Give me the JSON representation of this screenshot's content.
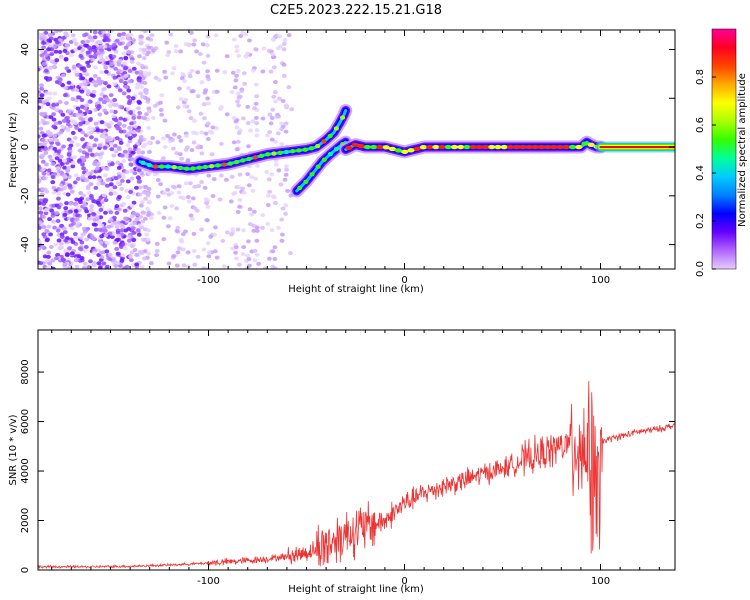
{
  "title": "C2E5.2023.222.15.21.G18",
  "chart_data": [
    {
      "type": "heatmap",
      "xlabel": "Height of straight line (km)",
      "ylabel": "Frequency (Hz)",
      "xlim": [
        -187,
        138
      ],
      "ylim": [
        -50,
        48
      ],
      "xticks": [
        -100,
        0,
        100
      ],
      "yticks": [
        -40,
        -20,
        0,
        20,
        40
      ],
      "xtick_labels": [
        "-100",
        "0",
        "100"
      ],
      "ytick_labels": [
        "-40",
        "-20",
        "0",
        "20",
        "40"
      ],
      "grid": false,
      "ridges": [
        {
          "x": [
            -135,
            -128,
            -120,
            -110,
            -100,
            -90,
            -80,
            -70,
            -60,
            -50,
            -45,
            -40,
            -36,
            -33,
            -31,
            -30
          ],
          "y": [
            -6,
            -8,
            -8,
            -9,
            -8,
            -7,
            -5,
            -3,
            -2,
            -1,
            0,
            3,
            6,
            10,
            13,
            15
          ]
        },
        {
          "x": [
            -55,
            -50,
            -46,
            -42,
            -38,
            -35,
            -32,
            -30
          ],
          "y": [
            -18,
            -14,
            -10,
            -6,
            -3,
            -1,
            1,
            2
          ]
        },
        {
          "x": [
            -30,
            -25,
            -20,
            -15,
            -10,
            -5,
            0,
            5,
            10,
            20,
            40,
            60,
            80,
            90,
            93,
            95,
            98,
            100
          ],
          "y": [
            -1,
            1,
            0,
            0,
            0,
            -1,
            -2,
            -1,
            0,
            0,
            0,
            0,
            0,
            0,
            2,
            1,
            0,
            0
          ]
        },
        {
          "x": [
            100,
            138
          ],
          "y": [
            0,
            0
          ]
        }
      ]
    },
    {
      "type": "line",
      "xlabel": "Height of straight line (km)",
      "ylabel": "SNR (10 * v/v)",
      "xlim": [
        -187,
        138
      ],
      "ylim": [
        0,
        9700
      ],
      "xticks": [
        -100,
        0,
        100
      ],
      "yticks": [
        0,
        2000,
        4000,
        6000,
        8000
      ],
      "xtick_labels": [
        "-100",
        "0",
        "100"
      ],
      "ytick_labels": [
        "0",
        "2000",
        "4000",
        "6000",
        "8000"
      ],
      "color": "#ee3333",
      "series": [
        {
          "x": [
            -187,
            -160,
            -140,
            -120,
            -100,
            -80,
            -70,
            -60,
            -50,
            -40,
            -30,
            -20,
            -10,
            0,
            10,
            20,
            30,
            40,
            50,
            60,
            70,
            80,
            85,
            90,
            95,
            100,
            101,
            105,
            110,
            120,
            130,
            138
          ],
          "y": [
            130,
            130,
            150,
            200,
            280,
            380,
            450,
            550,
            700,
            1000,
            1500,
            1700,
            2000,
            2700,
            3100,
            3400,
            3600,
            3900,
            4100,
            4400,
            4700,
            5000,
            5100,
            5100,
            4800,
            3500,
            5200,
            5300,
            5400,
            5600,
            5700,
            5850
          ]
        }
      ]
    }
  ],
  "colorbar": {
    "label": "Normalized spectral amplitude",
    "ticks": [
      0.0,
      0.2,
      0.4,
      0.6,
      0.8
    ],
    "tick_labels": [
      "0.0",
      "0.2",
      "0.4",
      "0.6",
      "0.8"
    ],
    "range": [
      0,
      1
    ],
    "colors": [
      "#e6ccff",
      "#b066ff",
      "#6600ff",
      "#0000ff",
      "#0080ff",
      "#00ccff",
      "#00ff99",
      "#33ff00",
      "#aaff00",
      "#ffff00",
      "#ffaa00",
      "#ff4400",
      "#ff0022",
      "#ff0099"
    ]
  }
}
